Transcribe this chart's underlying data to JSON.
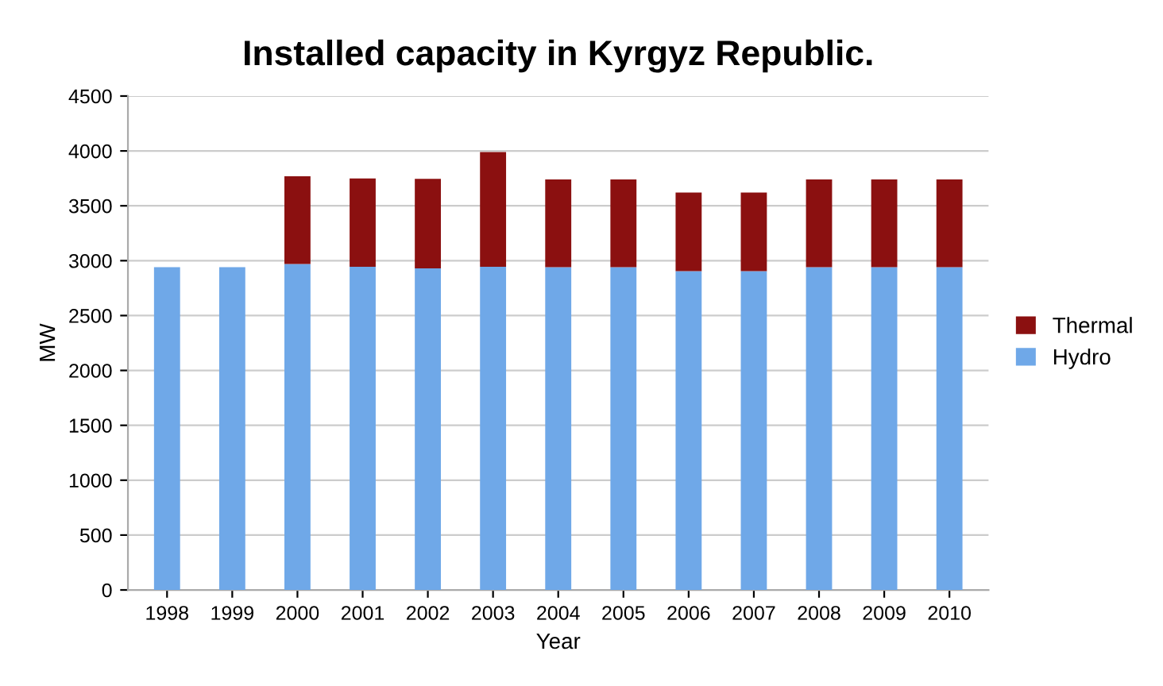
{
  "chart_data": {
    "type": "bar",
    "title": "Installed capacity in Kyrgyz Republic.",
    "xlabel": "Year",
    "ylabel": "MW",
    "categories": [
      "1998",
      "1999",
      "2000",
      "2001",
      "2002",
      "2003",
      "2004",
      "2005",
      "2006",
      "2007",
      "2008",
      "2009",
      "2010"
    ],
    "stacked": true,
    "series": [
      {
        "name": "Hydro",
        "color": "#6fa8e8",
        "values": [
          2940,
          2940,
          2970,
          2945,
          2930,
          2945,
          2940,
          2940,
          2905,
          2905,
          2940,
          2940,
          2940
        ]
      },
      {
        "name": "Thermal",
        "color": "#8b1010",
        "values": [
          0,
          0,
          800,
          805,
          815,
          1045,
          800,
          800,
          715,
          715,
          800,
          800,
          800
        ]
      }
    ],
    "ylim": [
      0,
      4500
    ],
    "yticks": [
      0,
      500,
      1000,
      1500,
      2000,
      2500,
      3000,
      3500,
      4000,
      4500
    ],
    "grid": "y",
    "legend": "right"
  }
}
